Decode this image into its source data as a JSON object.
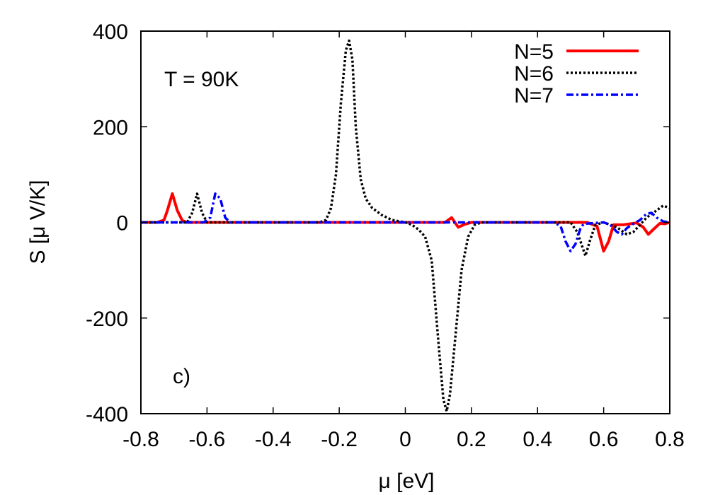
{
  "chart_data": {
    "type": "line",
    "xlabel": "μ [eV]",
    "ylabel": "S [μ V/K]",
    "xlim": [
      -0.8,
      0.8
    ],
    "ylim": [
      -400,
      400
    ],
    "xticks": [
      -0.8,
      -0.6,
      -0.4,
      -0.2,
      0,
      0.2,
      0.4,
      0.6,
      0.8
    ],
    "yticks": [
      -400,
      -200,
      0,
      200,
      400
    ],
    "xtick_labels": [
      "-0.8",
      "-0.6",
      "-0.4",
      "-0.2",
      "0",
      "0.2",
      "0.4",
      "0.6",
      "0.8"
    ],
    "ytick_labels": [
      "-400",
      "-200",
      "0",
      "200",
      "400"
    ],
    "legend_position": "top-right",
    "annotations": {
      "temperature": "T = 90K",
      "panel": "c)"
    },
    "series": [
      {
        "name": "N=5",
        "color": "#ff0000",
        "style": "solid",
        "points": [
          [
            -0.8,
            0
          ],
          [
            -0.75,
            0
          ],
          [
            -0.73,
            5
          ],
          [
            -0.72,
            25
          ],
          [
            -0.705,
            60
          ],
          [
            -0.69,
            25
          ],
          [
            -0.675,
            4
          ],
          [
            -0.66,
            0
          ],
          [
            -0.2,
            0
          ],
          [
            0.12,
            0
          ],
          [
            0.14,
            10
          ],
          [
            0.16,
            -10
          ],
          [
            0.18,
            -4
          ],
          [
            0.2,
            0
          ],
          [
            0.55,
            0
          ],
          [
            0.58,
            -8
          ],
          [
            0.6,
            -60
          ],
          [
            0.615,
            -40
          ],
          [
            0.63,
            -5
          ],
          [
            0.66,
            -5
          ],
          [
            0.7,
            -1
          ],
          [
            0.72,
            -10
          ],
          [
            0.735,
            -25
          ],
          [
            0.75,
            -15
          ],
          [
            0.77,
            -2
          ],
          [
            0.785,
            -3
          ],
          [
            0.8,
            0
          ]
        ]
      },
      {
        "name": "N=6",
        "color": "#000000",
        "style": "dotted",
        "points": [
          [
            -0.8,
            0
          ],
          [
            -0.66,
            0
          ],
          [
            -0.645,
            20
          ],
          [
            -0.63,
            60
          ],
          [
            -0.615,
            20
          ],
          [
            -0.6,
            0
          ],
          [
            -0.26,
            0
          ],
          [
            -0.24,
            5
          ],
          [
            -0.225,
            30
          ],
          [
            -0.21,
            100
          ],
          [
            -0.195,
            250
          ],
          [
            -0.18,
            360
          ],
          [
            -0.17,
            380
          ],
          [
            -0.16,
            340
          ],
          [
            -0.15,
            200
          ],
          [
            -0.135,
            90
          ],
          [
            -0.12,
            50
          ],
          [
            -0.1,
            30
          ],
          [
            -0.07,
            15
          ],
          [
            -0.04,
            5
          ],
          [
            0,
            0
          ],
          [
            0.02,
            -5
          ],
          [
            0.04,
            -15
          ],
          [
            0.06,
            -30
          ],
          [
            0.08,
            -80
          ],
          [
            0.1,
            -250
          ],
          [
            0.115,
            -370
          ],
          [
            0.125,
            -395
          ],
          [
            0.135,
            -360
          ],
          [
            0.15,
            -250
          ],
          [
            0.17,
            -100
          ],
          [
            0.19,
            -30
          ],
          [
            0.21,
            -5
          ],
          [
            0.23,
            0
          ],
          [
            0.5,
            0
          ],
          [
            0.52,
            -20
          ],
          [
            0.545,
            -70
          ],
          [
            0.56,
            -35
          ],
          [
            0.575,
            -5
          ],
          [
            0.6,
            0
          ],
          [
            0.64,
            -10
          ],
          [
            0.67,
            -25
          ],
          [
            0.69,
            -20
          ],
          [
            0.71,
            -5
          ],
          [
            0.73,
            10
          ],
          [
            0.76,
            25
          ],
          [
            0.78,
            35
          ],
          [
            0.8,
            30
          ]
        ]
      },
      {
        "name": "N=7",
        "color": "#0000ff",
        "style": "dashdot",
        "points": [
          [
            -0.8,
            0
          ],
          [
            -0.61,
            0
          ],
          [
            -0.59,
            10
          ],
          [
            -0.575,
            60
          ],
          [
            -0.56,
            50
          ],
          [
            -0.545,
            10
          ],
          [
            -0.53,
            0
          ],
          [
            0.45,
            0
          ],
          [
            0.47,
            -8
          ],
          [
            0.485,
            -40
          ],
          [
            0.5,
            -60
          ],
          [
            0.515,
            -45
          ],
          [
            0.53,
            -12
          ],
          [
            0.54,
            -3
          ],
          [
            0.6,
            0
          ],
          [
            0.62,
            -5
          ],
          [
            0.64,
            -20
          ],
          [
            0.655,
            -25
          ],
          [
            0.67,
            -12
          ],
          [
            0.69,
            -3
          ],
          [
            0.71,
            5
          ],
          [
            0.73,
            18
          ],
          [
            0.745,
            20
          ],
          [
            0.76,
            10
          ],
          [
            0.78,
            2
          ],
          [
            0.8,
            0
          ]
        ]
      }
    ]
  }
}
